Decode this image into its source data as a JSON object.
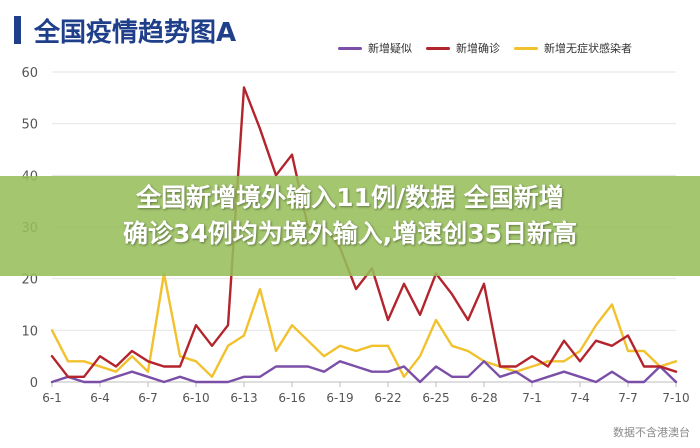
{
  "title": "全国疫情趋势图A",
  "headline": {
    "line1": "全国新增境外输入11例/数据  全国新增",
    "line2": "确诊34例均为境外输入,增速创35日新高"
  },
  "watermark": "数据不含港澳台",
  "colors": {
    "title": "#1f3f8a",
    "suspected": "#7b4fa8",
    "confirmed": "#b3242c",
    "asymptomatic": "#f2c12e",
    "overlay": "#9bbf5a",
    "grid": "#e6e6e6"
  },
  "chart_data": {
    "type": "line",
    "title": "全国疫情趋势图A",
    "xlabel": "",
    "ylabel": "",
    "ylim": [
      0,
      60
    ],
    "yticks": [
      0,
      10,
      20,
      30,
      40,
      50,
      60
    ],
    "xtick_labels": [
      "6-1",
      "6-4",
      "6-7",
      "6-10",
      "6-13",
      "6-16",
      "6-19",
      "6-22",
      "6-25",
      "6-28",
      "7-1",
      "7-4",
      "7-7",
      "7-10"
    ],
    "x": [
      "6-1",
      "6-2",
      "6-3",
      "6-4",
      "6-5",
      "6-6",
      "6-7",
      "6-8",
      "6-9",
      "6-10",
      "6-11",
      "6-12",
      "6-13",
      "6-14",
      "6-15",
      "6-16",
      "6-17",
      "6-18",
      "6-19",
      "6-20",
      "6-21",
      "6-22",
      "6-23",
      "6-24",
      "6-25",
      "6-26",
      "6-27",
      "6-28",
      "6-29",
      "6-30",
      "7-1",
      "7-2",
      "7-3",
      "7-4",
      "7-5",
      "7-6",
      "7-7",
      "7-8",
      "7-9",
      "7-10"
    ],
    "grid": true,
    "legend_position": "top-right",
    "series": [
      {
        "name": "新增疑似",
        "values": [
          0,
          1,
          0,
          0,
          1,
          2,
          1,
          0,
          1,
          0,
          0,
          0,
          1,
          1,
          3,
          3,
          3,
          2,
          4,
          3,
          2,
          2,
          3,
          0,
          3,
          1,
          1,
          4,
          1,
          2,
          0,
          1,
          2,
          1,
          0,
          2,
          0,
          0,
          3,
          0
        ]
      },
      {
        "name": "新增确诊",
        "values": [
          5,
          1,
          1,
          5,
          3,
          6,
          4,
          3,
          3,
          11,
          7,
          11,
          57,
          49,
          40,
          44,
          30,
          30,
          26,
          18,
          22,
          12,
          19,
          13,
          21,
          17,
          12,
          19,
          3,
          3,
          5,
          3,
          8,
          4,
          8,
          7,
          9,
          3,
          3,
          2
        ]
      },
      {
        "name": "新增无症状感染者",
        "values": [
          10,
          4,
          4,
          3,
          2,
          5,
          2,
          21,
          5,
          4,
          1,
          7,
          9,
          18,
          6,
          11,
          8,
          5,
          7,
          6,
          7,
          7,
          1,
          5,
          12,
          7,
          6,
          4,
          3,
          2,
          3,
          4,
          4,
          6,
          11,
          15,
          6,
          6,
          3,
          4
        ]
      }
    ]
  }
}
